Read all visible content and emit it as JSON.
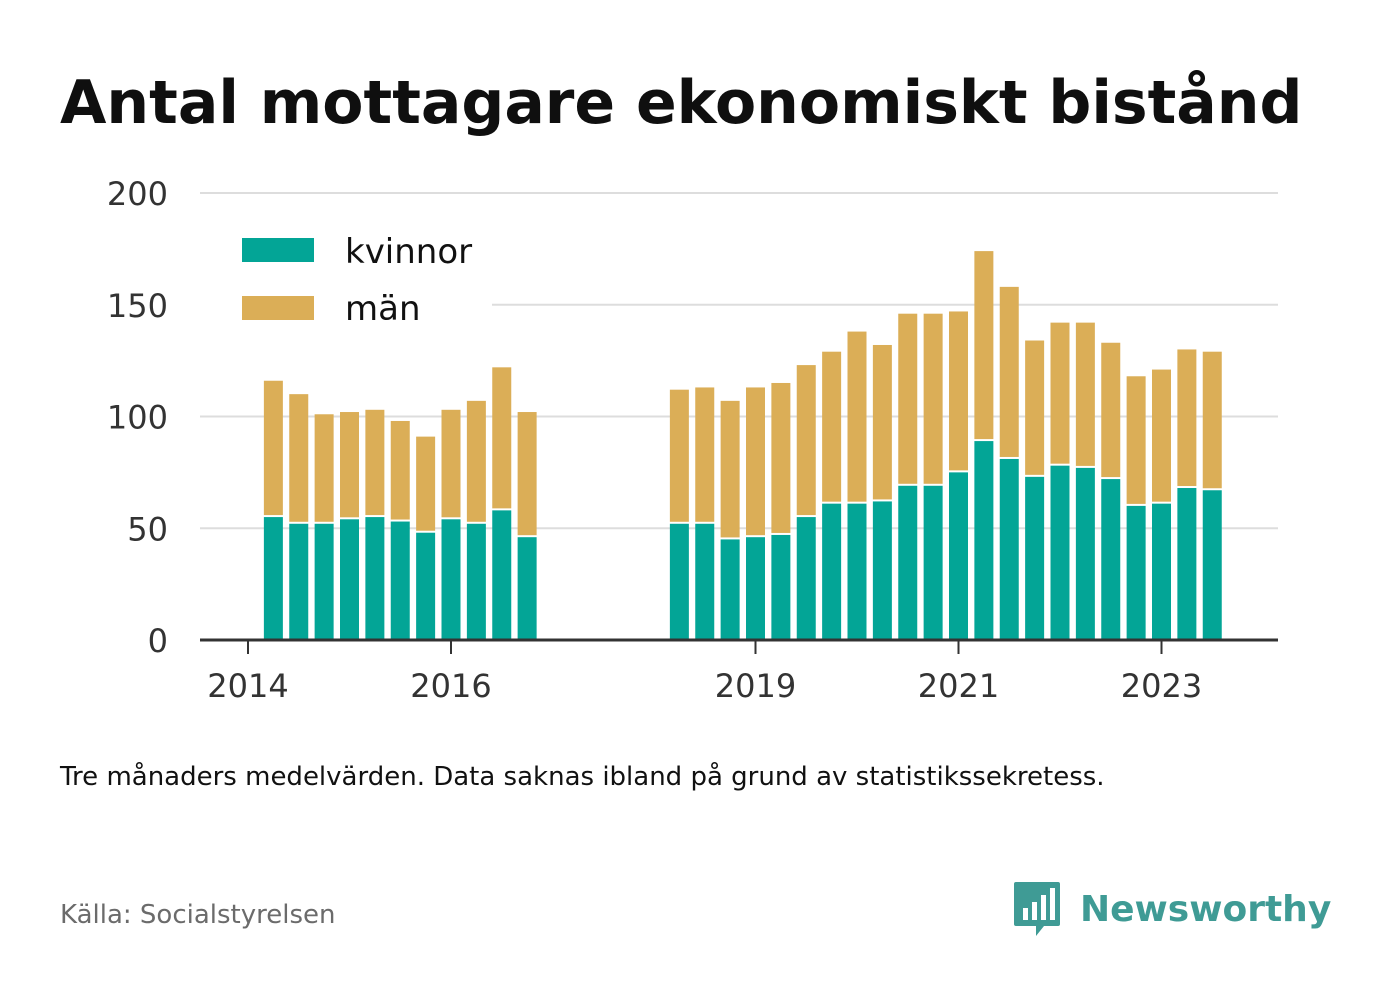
{
  "title": "Antal mottagare ekonomiskt bistånd",
  "note": "Tre månaders medelvärden. Data saknas ibland på grund av statistikssekretess.",
  "source": "Källa: Socialstyrelsen",
  "brand": "Newsworthy",
  "colors": {
    "kvinnor": "#03a596",
    "man": "#dbae57",
    "grid": "#dddddd",
    "axis": "#333333",
    "brand": "#3f9b95"
  },
  "chart_data": {
    "type": "bar",
    "stacked": true,
    "ylim": [
      0,
      200
    ],
    "yticks": [
      0,
      50,
      100,
      150,
      200
    ],
    "xlim": [
      2014.0,
      2024.6
    ],
    "xticks": [
      2014,
      2016,
      2019,
      2021,
      2023
    ],
    "grid": true,
    "legend_position": "top-left",
    "x": [
      2014.25,
      2014.5,
      2014.75,
      2015.0,
      2015.25,
      2015.5,
      2015.75,
      2016.0,
      2016.25,
      2016.5,
      2016.75,
      2018.25,
      2018.5,
      2018.75,
      2019.0,
      2019.25,
      2019.5,
      2019.75,
      2020.0,
      2020.25,
      2020.5,
      2020.75,
      2021.0,
      2021.25,
      2021.5,
      2021.75,
      2022.0,
      2022.25,
      2022.5,
      2022.75,
      2023.0,
      2023.25,
      2023.5
    ],
    "series": [
      {
        "name": "kvinnor",
        "color": "#03a596",
        "values": [
          55,
          52,
          52,
          54,
          55,
          53,
          48,
          54,
          52,
          58,
          46,
          52,
          52,
          45,
          46,
          47,
          55,
          61,
          61,
          62,
          69,
          69,
          75,
          89,
          81,
          73,
          78,
          77,
          72,
          60,
          61,
          68,
          67
        ]
      },
      {
        "name": "män",
        "color": "#dbae57",
        "values": [
          61,
          58,
          49,
          48,
          48,
          45,
          43,
          49,
          55,
          64,
          56,
          60,
          61,
          62,
          67,
          68,
          68,
          68,
          77,
          70,
          77,
          77,
          72,
          85,
          77,
          61,
          64,
          65,
          61,
          58,
          60,
          62,
          62
        ]
      }
    ]
  }
}
